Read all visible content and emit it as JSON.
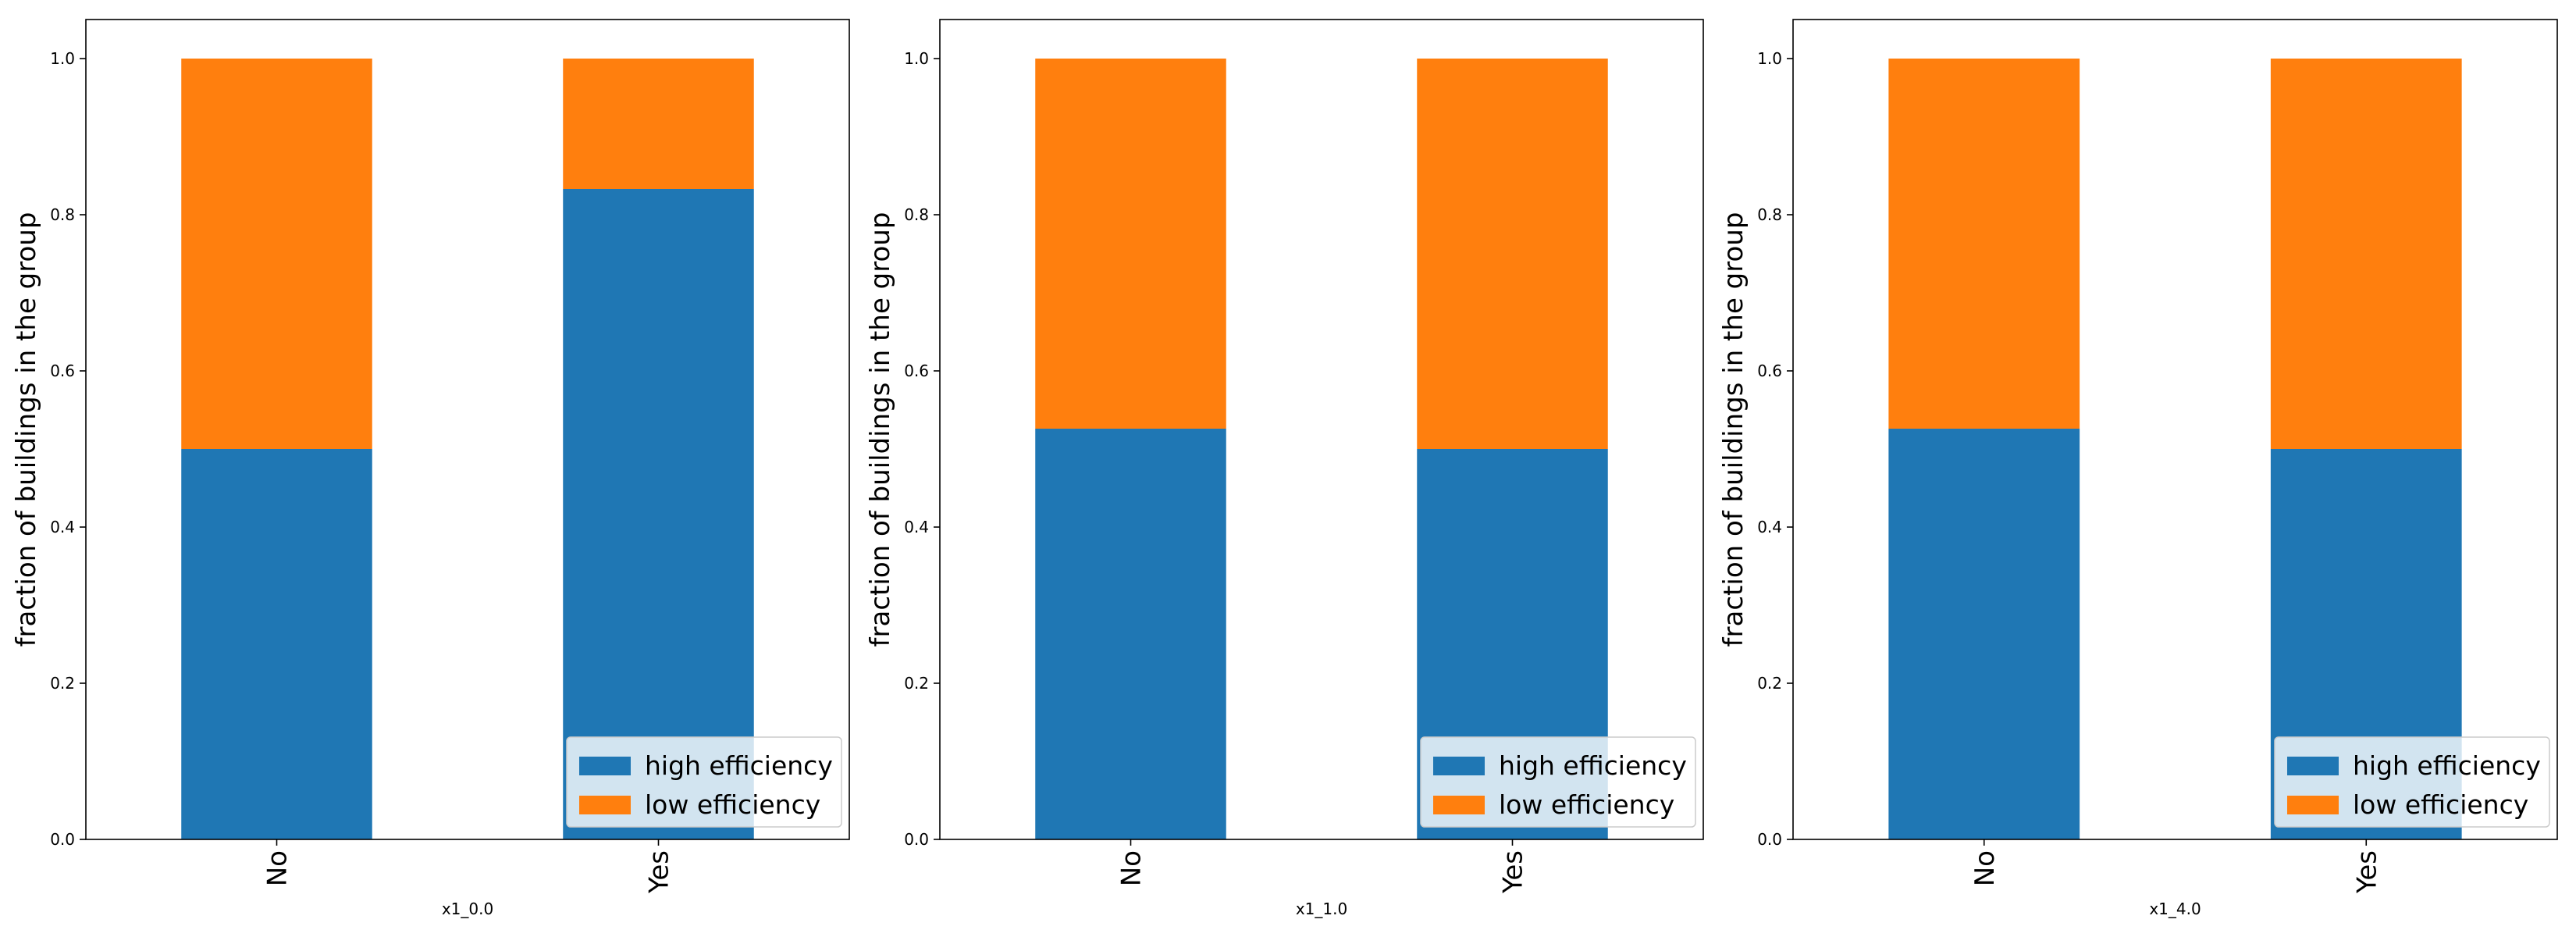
{
  "chart_data": [
    {
      "type": "bar",
      "stacked": true,
      "categories": [
        "No",
        "Yes"
      ],
      "series": [
        {
          "name": "high efficiency",
          "values": [
            0.5,
            0.833
          ],
          "color": "#1f77b4"
        },
        {
          "name": "low efficiency",
          "values": [
            0.5,
            0.167
          ],
          "color": "#ff7f0e"
        }
      ],
      "xlabel": "x1_0.0",
      "ylabel": "fraction of buildings in the group",
      "ylim": [
        0,
        1.05
      ],
      "yticks": [
        "0.0",
        "0.2",
        "0.4",
        "0.6",
        "0.8",
        "1.0"
      ],
      "grid": false,
      "legend_position": "lower right"
    },
    {
      "type": "bar",
      "stacked": true,
      "categories": [
        "No",
        "Yes"
      ],
      "series": [
        {
          "name": "high efficiency",
          "values": [
            0.526,
            0.5
          ],
          "color": "#1f77b4"
        },
        {
          "name": "low efficiency",
          "values": [
            0.474,
            0.5
          ],
          "color": "#ff7f0e"
        }
      ],
      "xlabel": "x1_1.0",
      "ylabel": "fraction of buildings in the group",
      "ylim": [
        0,
        1.05
      ],
      "yticks": [
        "0.0",
        "0.2",
        "0.4",
        "0.6",
        "0.8",
        "1.0"
      ],
      "grid": false,
      "legend_position": "lower right"
    },
    {
      "type": "bar",
      "stacked": true,
      "categories": [
        "No",
        "Yes"
      ],
      "series": [
        {
          "name": "high efficiency",
          "values": [
            0.526,
            0.5
          ],
          "color": "#1f77b4"
        },
        {
          "name": "low efficiency",
          "values": [
            0.474,
            0.5
          ],
          "color": "#ff7f0e"
        }
      ],
      "xlabel": "x1_4.0",
      "ylabel": "fraction of buildings in the group",
      "ylim": [
        0,
        1.05
      ],
      "yticks": [
        "0.0",
        "0.2",
        "0.4",
        "0.6",
        "0.8",
        "1.0"
      ],
      "grid": false,
      "legend_position": "lower right"
    }
  ]
}
